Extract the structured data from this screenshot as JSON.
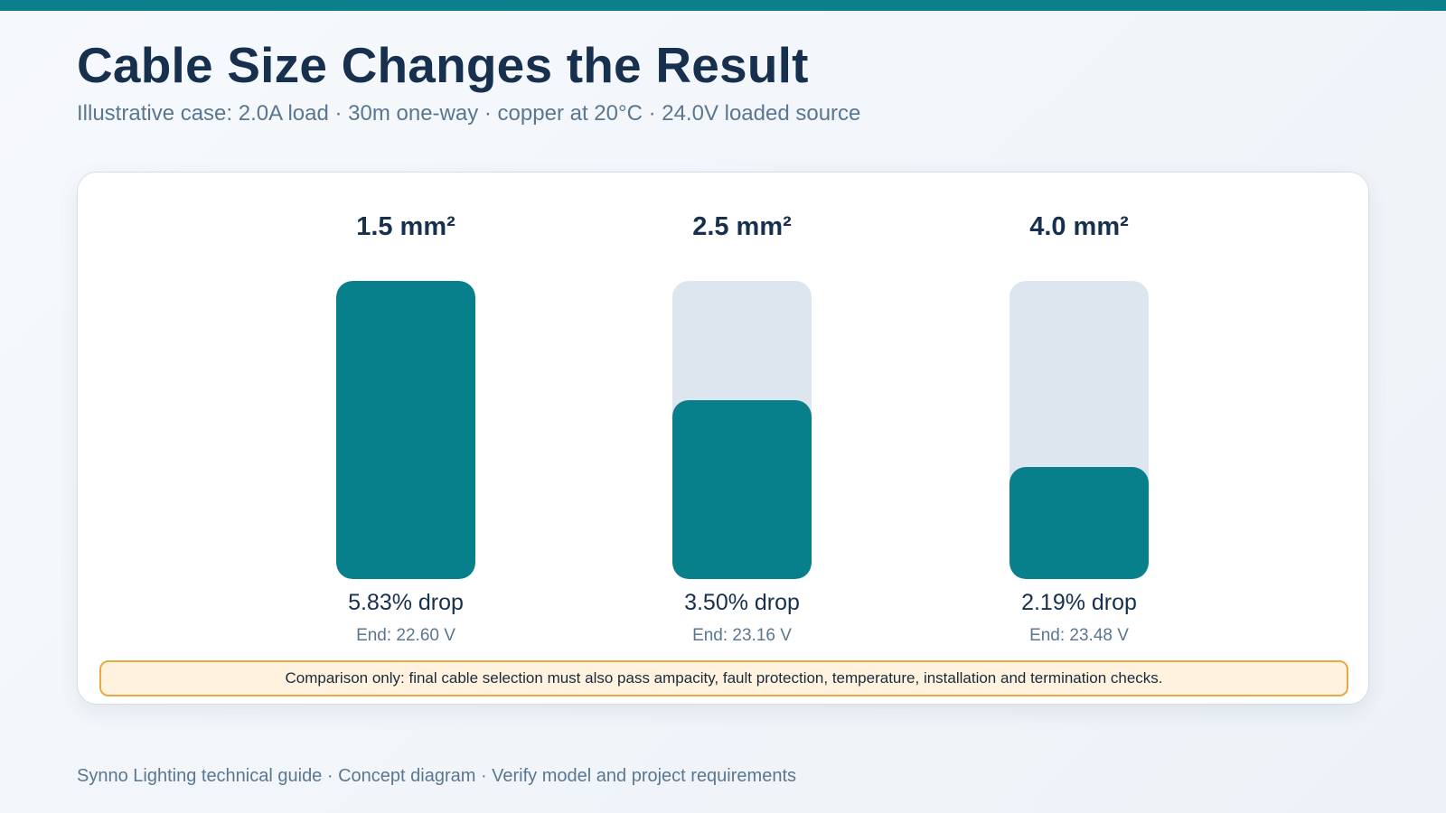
{
  "header": {
    "title": "Cable Size Changes the Result",
    "subtitle": "Illustrative case: 2.0A load · 30m one-way · copper at 20°C · 24.0V loaded source"
  },
  "chart_data": {
    "type": "bar",
    "categories": [
      "1.5 mm²",
      "2.5 mm²",
      "4.0 mm²"
    ],
    "values": [
      5.83,
      3.5,
      2.19
    ],
    "value_labels": [
      "5.83% drop",
      "3.50% drop",
      "2.19% drop"
    ],
    "end_voltage_labels": [
      "End: 22.60 V",
      "End: 23.16 V",
      "End: 23.48 V"
    ],
    "ylim": [
      0,
      5.83
    ],
    "grid": false,
    "bar_color": "#08808c",
    "track_color": "#dde6ef"
  },
  "note": "Comparison only: final cable selection must also pass ampacity, fault protection, temperature, installation and termination checks.",
  "footer": "Synno Lighting technical guide · Concept diagram · Verify model and project requirements",
  "colors": {
    "accent": "#0b7f8c",
    "note_background": "#fff3df",
    "note_border": "#e9a940"
  }
}
